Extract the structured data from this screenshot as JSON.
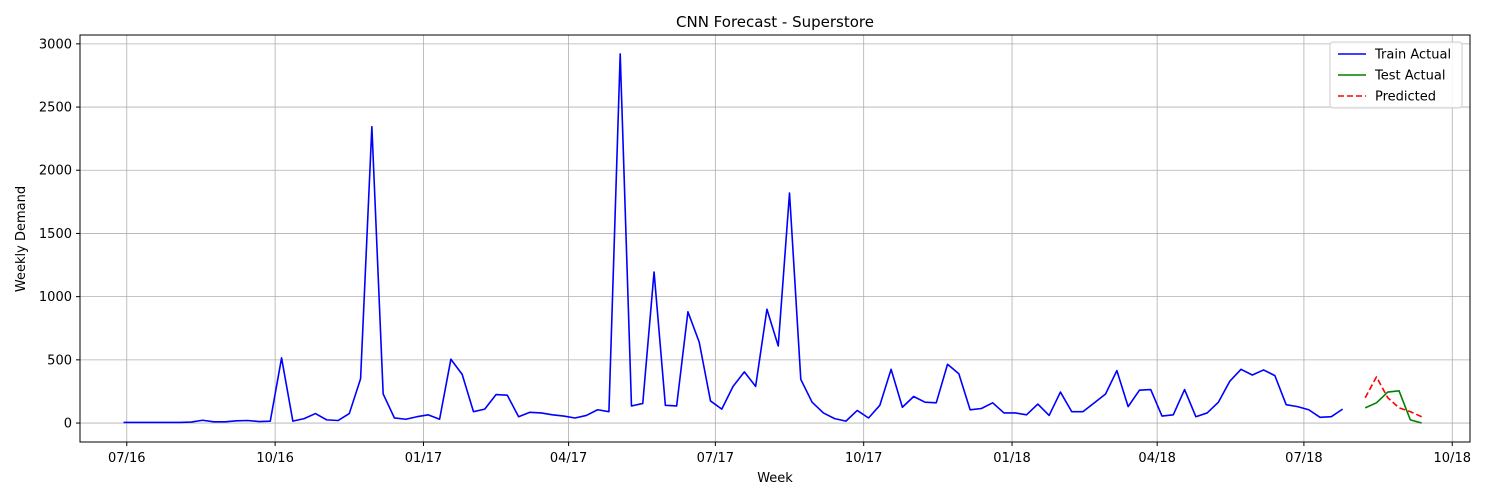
{
  "chart_data": {
    "type": "line",
    "title": "CNN Forecast - Superstore",
    "xlabel": "Week",
    "ylabel": "Weekly Demand",
    "grid": true,
    "legend_position": "top-right",
    "xlim": [
      "2016-06-02",
      "2018-10-12"
    ],
    "ylim": [
      -150,
      3070
    ],
    "x_ticks": [
      {
        "date": "2016-07-01",
        "label": "07/16"
      },
      {
        "date": "2016-10-01",
        "label": "10/16"
      },
      {
        "date": "2017-01-01",
        "label": "01/17"
      },
      {
        "date": "2017-04-01",
        "label": "04/17"
      },
      {
        "date": "2017-07-01",
        "label": "07/17"
      },
      {
        "date": "2017-10-01",
        "label": "10/17"
      },
      {
        "date": "2018-01-01",
        "label": "01/18"
      },
      {
        "date": "2018-04-01",
        "label": "04/18"
      },
      {
        "date": "2018-07-01",
        "label": "07/18"
      },
      {
        "date": "2018-10-01",
        "label": "10/18"
      }
    ],
    "y_ticks": [
      0,
      500,
      1000,
      1500,
      2000,
      2500,
      3000
    ],
    "series": [
      {
        "name": "Train Actual",
        "color": "#0000ff",
        "dash": "solid",
        "points": [
          [
            "2016-06-29",
            5
          ],
          [
            "2016-07-06",
            5
          ],
          [
            "2016-07-13",
            5
          ],
          [
            "2016-07-20",
            5
          ],
          [
            "2016-07-27",
            5
          ],
          [
            "2016-08-03",
            5
          ],
          [
            "2016-08-10",
            8
          ],
          [
            "2016-08-17",
            22
          ],
          [
            "2016-08-24",
            10
          ],
          [
            "2016-08-31",
            10
          ],
          [
            "2016-09-07",
            18
          ],
          [
            "2016-09-14",
            20
          ],
          [
            "2016-09-21",
            12
          ],
          [
            "2016-09-28",
            15
          ],
          [
            "2016-10-05",
            515
          ],
          [
            "2016-10-12",
            15
          ],
          [
            "2016-10-19",
            35
          ],
          [
            "2016-10-26",
            75
          ],
          [
            "2016-11-02",
            25
          ],
          [
            "2016-11-09",
            20
          ],
          [
            "2016-11-16",
            75
          ],
          [
            "2016-11-23",
            350
          ],
          [
            "2016-11-30",
            2345
          ],
          [
            "2016-12-07",
            230
          ],
          [
            "2016-12-14",
            40
          ],
          [
            "2016-12-21",
            30
          ],
          [
            "2016-12-28",
            50
          ],
          [
            "2017-01-04",
            65
          ],
          [
            "2017-01-11",
            30
          ],
          [
            "2017-01-18",
            505
          ],
          [
            "2017-01-25",
            385
          ],
          [
            "2017-02-01",
            90
          ],
          [
            "2017-02-08",
            110
          ],
          [
            "2017-02-15",
            225
          ],
          [
            "2017-02-22",
            220
          ],
          [
            "2017-03-01",
            50
          ],
          [
            "2017-03-08",
            85
          ],
          [
            "2017-03-15",
            80
          ],
          [
            "2017-03-22",
            65
          ],
          [
            "2017-03-29",
            55
          ],
          [
            "2017-04-05",
            40
          ],
          [
            "2017-04-12",
            60
          ],
          [
            "2017-04-19",
            105
          ],
          [
            "2017-04-26",
            90
          ],
          [
            "2017-05-03",
            2920
          ],
          [
            "2017-05-10",
            135
          ],
          [
            "2017-05-17",
            155
          ],
          [
            "2017-05-24",
            1195
          ],
          [
            "2017-05-31",
            140
          ],
          [
            "2017-06-07",
            135
          ],
          [
            "2017-06-14",
            880
          ],
          [
            "2017-06-21",
            640
          ],
          [
            "2017-06-28",
            175
          ],
          [
            "2017-07-05",
            110
          ],
          [
            "2017-07-12",
            290
          ],
          [
            "2017-07-19",
            405
          ],
          [
            "2017-07-26",
            290
          ],
          [
            "2017-08-02",
            900
          ],
          [
            "2017-08-09",
            610
          ],
          [
            "2017-08-16",
            1820
          ],
          [
            "2017-08-23",
            345
          ],
          [
            "2017-08-30",
            165
          ],
          [
            "2017-09-06",
            80
          ],
          [
            "2017-09-13",
            35
          ],
          [
            "2017-09-20",
            15
          ],
          [
            "2017-09-27",
            100
          ],
          [
            "2017-10-04",
            40
          ],
          [
            "2017-10-11",
            140
          ],
          [
            "2017-10-18",
            425
          ],
          [
            "2017-10-25",
            125
          ],
          [
            "2017-11-01",
            210
          ],
          [
            "2017-11-08",
            165
          ],
          [
            "2017-11-15",
            160
          ],
          [
            "2017-11-22",
            465
          ],
          [
            "2017-11-29",
            390
          ],
          [
            "2017-12-06",
            105
          ],
          [
            "2017-12-13",
            115
          ],
          [
            "2017-12-20",
            160
          ],
          [
            "2017-12-27",
            80
          ],
          [
            "2018-01-03",
            80
          ],
          [
            "2018-01-10",
            65
          ],
          [
            "2018-01-17",
            150
          ],
          [
            "2018-01-24",
            60
          ],
          [
            "2018-01-31",
            245
          ],
          [
            "2018-02-07",
            90
          ],
          [
            "2018-02-14",
            90
          ],
          [
            "2018-02-21",
            160
          ],
          [
            "2018-02-28",
            230
          ],
          [
            "2018-03-07",
            415
          ],
          [
            "2018-03-14",
            130
          ],
          [
            "2018-03-21",
            260
          ],
          [
            "2018-03-28",
            265
          ],
          [
            "2018-04-04",
            55
          ],
          [
            "2018-04-11",
            65
          ],
          [
            "2018-04-18",
            265
          ],
          [
            "2018-04-25",
            50
          ],
          [
            "2018-05-02",
            80
          ],
          [
            "2018-05-09",
            165
          ],
          [
            "2018-05-16",
            330
          ],
          [
            "2018-05-23",
            425
          ],
          [
            "2018-05-30",
            380
          ],
          [
            "2018-06-06",
            420
          ],
          [
            "2018-06-13",
            375
          ],
          [
            "2018-06-20",
            145
          ],
          [
            "2018-06-27",
            130
          ],
          [
            "2018-07-04",
            105
          ],
          [
            "2018-07-11",
            45
          ],
          [
            "2018-07-18",
            50
          ],
          [
            "2018-07-25",
            110
          ]
        ]
      },
      {
        "name": "Test Actual",
        "color": "#008000",
        "dash": "solid",
        "points": [
          [
            "2018-08-08",
            120
          ],
          [
            "2018-08-15",
            160
          ],
          [
            "2018-08-22",
            245
          ],
          [
            "2018-08-29",
            255
          ],
          [
            "2018-09-05",
            25
          ],
          [
            "2018-09-12",
            0
          ]
        ]
      },
      {
        "name": "Predicted",
        "color": "#ff0000",
        "dash": "dashed",
        "points": [
          [
            "2018-08-08",
            200
          ],
          [
            "2018-08-15",
            365
          ],
          [
            "2018-08-22",
            200
          ],
          [
            "2018-08-29",
            120
          ],
          [
            "2018-09-05",
            90
          ],
          [
            "2018-09-12",
            50
          ]
        ]
      }
    ]
  }
}
